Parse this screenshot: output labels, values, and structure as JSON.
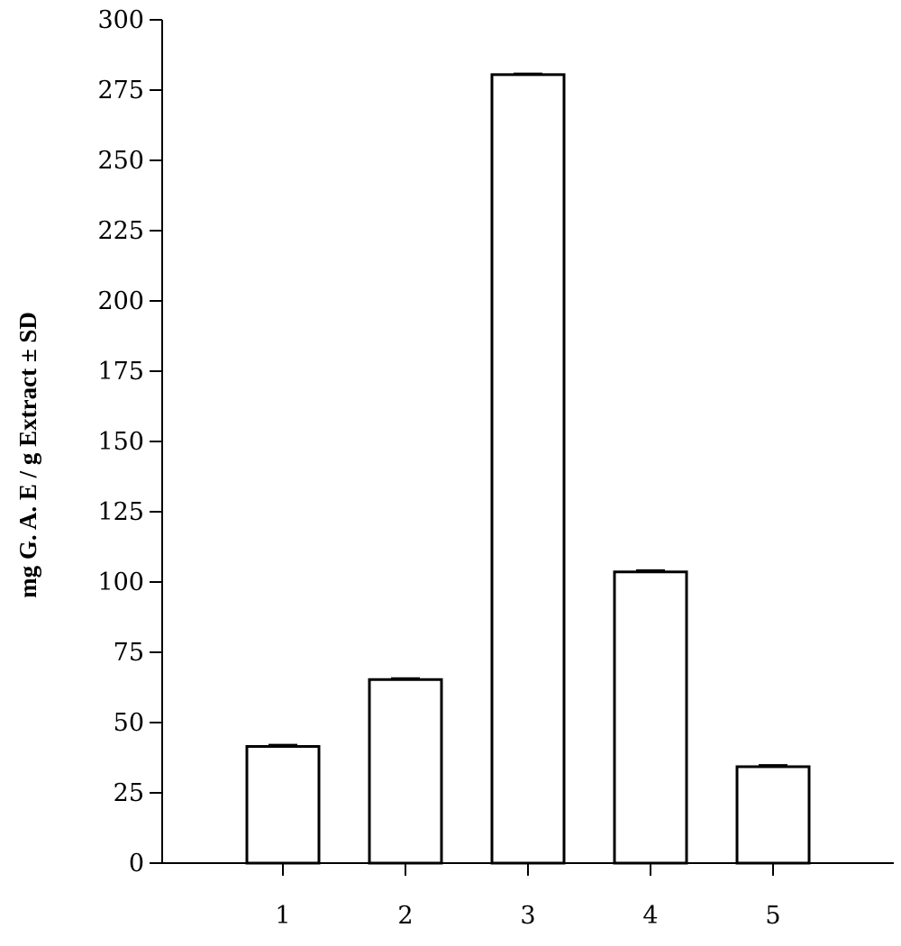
{
  "chart_data": {
    "type": "bar",
    "title": "",
    "xlabel": "",
    "ylabel": "mg G. A. E / g Extract ± SD",
    "categories": [
      "1",
      "2",
      "3",
      "4",
      "5"
    ],
    "values": [
      41.5,
      65.3,
      280.5,
      103.6,
      34.3
    ],
    "errors": [
      0.6,
      0.5,
      0.4,
      0.6,
      0.6
    ],
    "ylim": [
      0,
      300
    ],
    "yticks": [
      0,
      25,
      50,
      75,
      100,
      125,
      150,
      175,
      200,
      225,
      250,
      275,
      300
    ],
    "grid": false,
    "bar_fill": "#ffffff",
    "bar_stroke": "#000000"
  }
}
